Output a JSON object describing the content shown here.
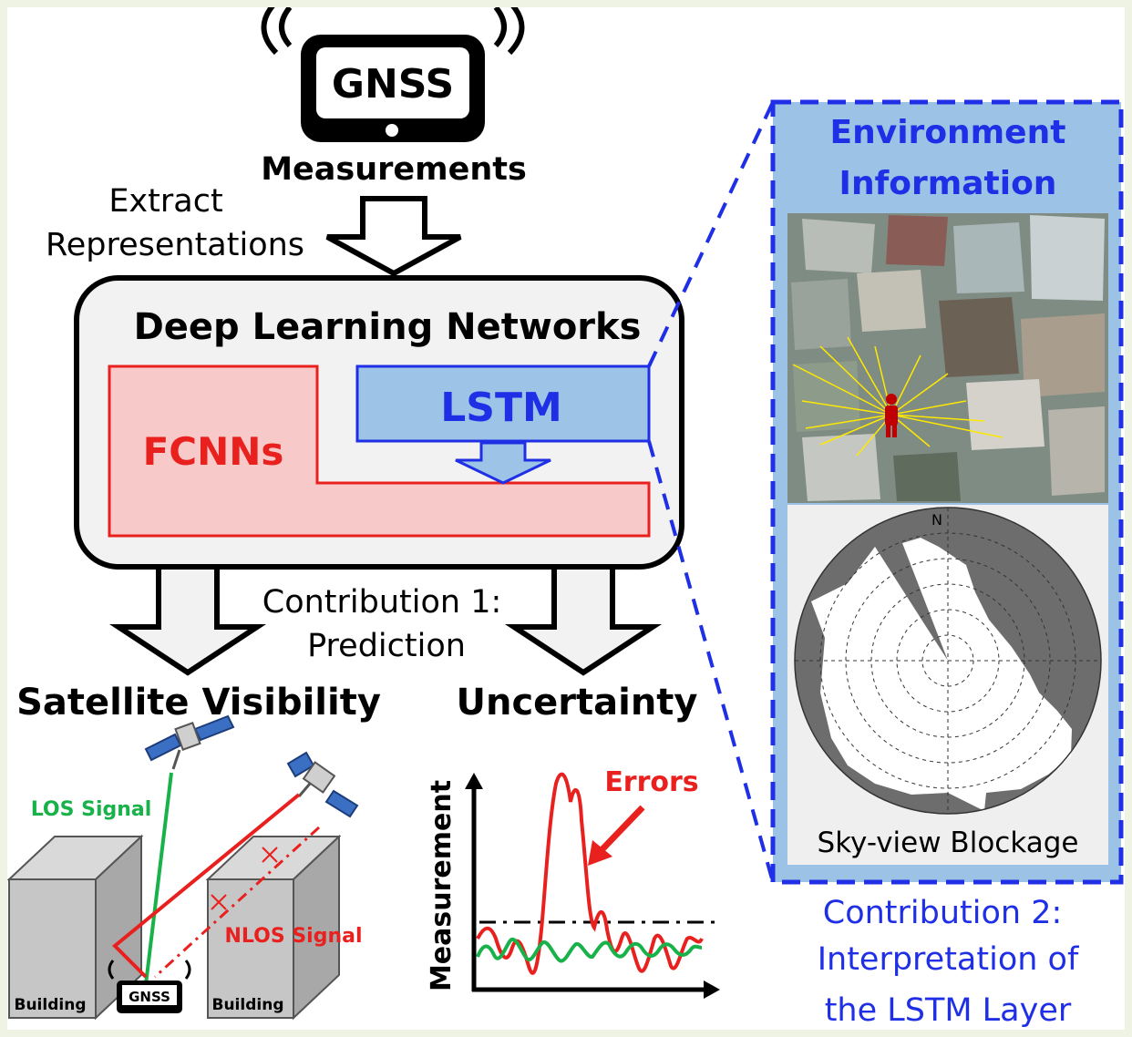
{
  "gnss_device": {
    "label": "GNSS",
    "caption": "Measurements"
  },
  "extract": {
    "line1": "Extract",
    "line2": "Representations"
  },
  "deep_learning": {
    "title": "Deep Learning Networks",
    "fcnns": "FCNNs",
    "lstm": "LSTM"
  },
  "contribution1": {
    "line1": "Contribution 1:",
    "line2": "Prediction"
  },
  "outputs": {
    "visibility": "Satellite Visibility",
    "uncertainty": "Uncertainty"
  },
  "visibility_scene": {
    "los": "LOS Signal",
    "nlos": "NLOS Signal",
    "building_left": "Building",
    "building_right": "Building",
    "receiver": "GNSS"
  },
  "uncertainty_plot": {
    "ylabel": "Measurement",
    "errors": "Errors"
  },
  "environment": {
    "title_line1": "Environment",
    "title_line2": "Information",
    "north": "N",
    "skyview": "Sky-view Blockage"
  },
  "contribution2": {
    "line1": "Contribution 2:",
    "line2": "Interpretation of",
    "line3": "the LSTM Layer"
  },
  "colors": {
    "red": "#e8201e",
    "blue": "#1f2fe6",
    "green": "#19b24a",
    "panel_blue": "#9cc3e6",
    "lstm_fill": "#9dc3e6",
    "fcnn_fill": "#f8c9c9"
  }
}
